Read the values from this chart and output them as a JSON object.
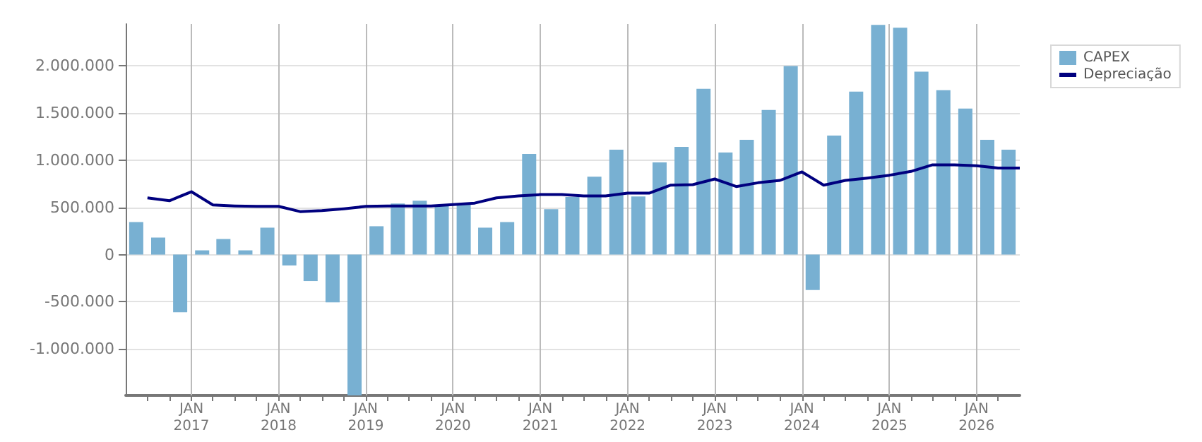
{
  "chart_data": {
    "type": "bar",
    "series": [
      {
        "name": "CAPEX",
        "color": "#78b0d2",
        "x": [
          "2016-05-15",
          "2016-08-15",
          "2016-11-15",
          "2017-02-15",
          "2017-05-15",
          "2017-08-15",
          "2017-11-15",
          "2018-02-15",
          "2018-05-15",
          "2018-08-15",
          "2018-11-15",
          "2019-02-15",
          "2019-05-15",
          "2019-08-15",
          "2019-11-15",
          "2020-02-15",
          "2020-05-15",
          "2020-08-15",
          "2020-11-15",
          "2021-02-15",
          "2021-05-15",
          "2021-08-15",
          "2021-11-15",
          "2022-02-15",
          "2022-05-15",
          "2022-08-15",
          "2022-11-15",
          "2023-02-15",
          "2023-05-15",
          "2023-08-15",
          "2023-11-15",
          "2024-02-15",
          "2024-05-15",
          "2024-08-15",
          "2024-11-15",
          "2025-02-15",
          "2025-05-15",
          "2025-08-15",
          "2025-11-15",
          "2026-02-15",
          "2026-05-15"
        ],
        "values": [
          345000,
          180000,
          -610000,
          45000,
          165000,
          45000,
          285000,
          -115000,
          -280000,
          -505000,
          -1490000,
          300000,
          540000,
          570000,
          520000,
          540000,
          285000,
          345000,
          1065000,
          480000,
          610000,
          825000,
          1110000,
          615000,
          975000,
          1140000,
          1755000,
          1080000,
          1215000,
          1530000,
          1995000,
          -375000,
          1260000,
          1725000,
          2430000,
          2400000,
          1935000,
          1740000,
          1545000,
          1215000,
          1110000
        ]
      },
      {
        "name": "Depreciação",
        "type": "line",
        "color": "#00007f",
        "x": [
          "2016-07-01",
          "2016-10-01",
          "2017-01-01",
          "2017-04-01",
          "2017-07-01",
          "2017-10-01",
          "2018-01-01",
          "2018-04-01",
          "2018-07-01",
          "2018-10-01",
          "2019-01-01",
          "2019-04-01",
          "2019-07-01",
          "2019-10-01",
          "2020-01-01",
          "2020-04-01",
          "2020-07-01",
          "2020-10-01",
          "2021-01-01",
          "2021-04-01",
          "2021-07-01",
          "2021-10-01",
          "2022-01-01",
          "2022-04-01",
          "2022-07-01",
          "2022-10-01",
          "2023-01-01",
          "2023-04-01",
          "2023-07-01",
          "2023-10-01",
          "2024-01-01",
          "2024-04-01",
          "2024-07-01",
          "2024-10-01",
          "2025-01-01",
          "2025-04-01",
          "2025-07-01",
          "2025-10-01",
          "2026-01-01",
          "2026-04-01",
          "2026-07-01"
        ],
        "values": [
          600000,
          570000,
          665000,
          525000,
          515000,
          510000,
          510000,
          455000,
          465000,
          485000,
          510000,
          515000,
          515000,
          515000,
          530000,
          545000,
          600000,
          620000,
          635000,
          635000,
          620000,
          620000,
          650000,
          650000,
          735000,
          740000,
          800000,
          720000,
          760000,
          785000,
          875000,
          735000,
          785000,
          810000,
          840000,
          880000,
          950000,
          950000,
          940000,
          915000,
          915000
        ]
      }
    ],
    "xlim": [
      "2016-04-01",
      "2026-07-01"
    ],
    "xticks": [
      {
        "value": "2016-07-01",
        "label": null
      },
      {
        "value": "2016-10-01",
        "label": null
      },
      {
        "value": "2017-01-01",
        "label": "JAN\n2017"
      },
      {
        "value": "2017-04-01",
        "label": null
      },
      {
        "value": "2017-07-01",
        "label": null
      },
      {
        "value": "2017-10-01",
        "label": null
      },
      {
        "value": "2018-01-01",
        "label": "JAN\n2018"
      },
      {
        "value": "2018-04-01",
        "label": null
      },
      {
        "value": "2018-07-01",
        "label": null
      },
      {
        "value": "2018-10-01",
        "label": null
      },
      {
        "value": "2019-01-01",
        "label": "JAN\n2019"
      },
      {
        "value": "2019-04-01",
        "label": null
      },
      {
        "value": "2019-07-01",
        "label": null
      },
      {
        "value": "2019-10-01",
        "label": null
      },
      {
        "value": "2020-01-01",
        "label": "JAN\n2020"
      },
      {
        "value": "2020-04-01",
        "label": null
      },
      {
        "value": "2020-07-01",
        "label": null
      },
      {
        "value": "2020-10-01",
        "label": null
      },
      {
        "value": "2021-01-01",
        "label": "JAN\n2021"
      },
      {
        "value": "2021-04-01",
        "label": null
      },
      {
        "value": "2021-07-01",
        "label": null
      },
      {
        "value": "2021-10-01",
        "label": null
      },
      {
        "value": "2022-01-01",
        "label": "JAN\n2022"
      },
      {
        "value": "2022-04-01",
        "label": null
      },
      {
        "value": "2022-07-01",
        "label": null
      },
      {
        "value": "2022-10-01",
        "label": null
      },
      {
        "value": "2023-01-01",
        "label": "JAN\n2023"
      },
      {
        "value": "2023-04-01",
        "label": null
      },
      {
        "value": "2023-07-01",
        "label": null
      },
      {
        "value": "2023-10-01",
        "label": null
      },
      {
        "value": "2024-01-01",
        "label": "JAN\n2024"
      },
      {
        "value": "2024-04-01",
        "label": null
      },
      {
        "value": "2024-07-01",
        "label": null
      },
      {
        "value": "2024-10-01",
        "label": null
      },
      {
        "value": "2025-01-01",
        "label": "JAN\n2025"
      },
      {
        "value": "2025-04-01",
        "label": null
      },
      {
        "value": "2025-07-01",
        "label": null
      },
      {
        "value": "2025-10-01",
        "label": null
      },
      {
        "value": "2026-01-01",
        "label": "JAN\n2026"
      },
      {
        "value": "2026-04-01",
        "label": null
      }
    ],
    "ylim": [
      -1490000,
      2440000
    ],
    "yticks": [
      {
        "value": -1000000,
        "label": "-1.000.000"
      },
      {
        "value": -500000,
        "label": "-500.000"
      },
      {
        "value": 0,
        "label": "0"
      },
      {
        "value": 500000,
        "label": "500.000"
      },
      {
        "value": 1000000,
        "label": "1.000.000"
      },
      {
        "value": 1500000,
        "label": "1.500.000"
      },
      {
        "value": 2000000,
        "label": "2.000.000"
      }
    ],
    "grid": true,
    "legend": "top right",
    "marker": "none",
    "line_style": "solid"
  }
}
